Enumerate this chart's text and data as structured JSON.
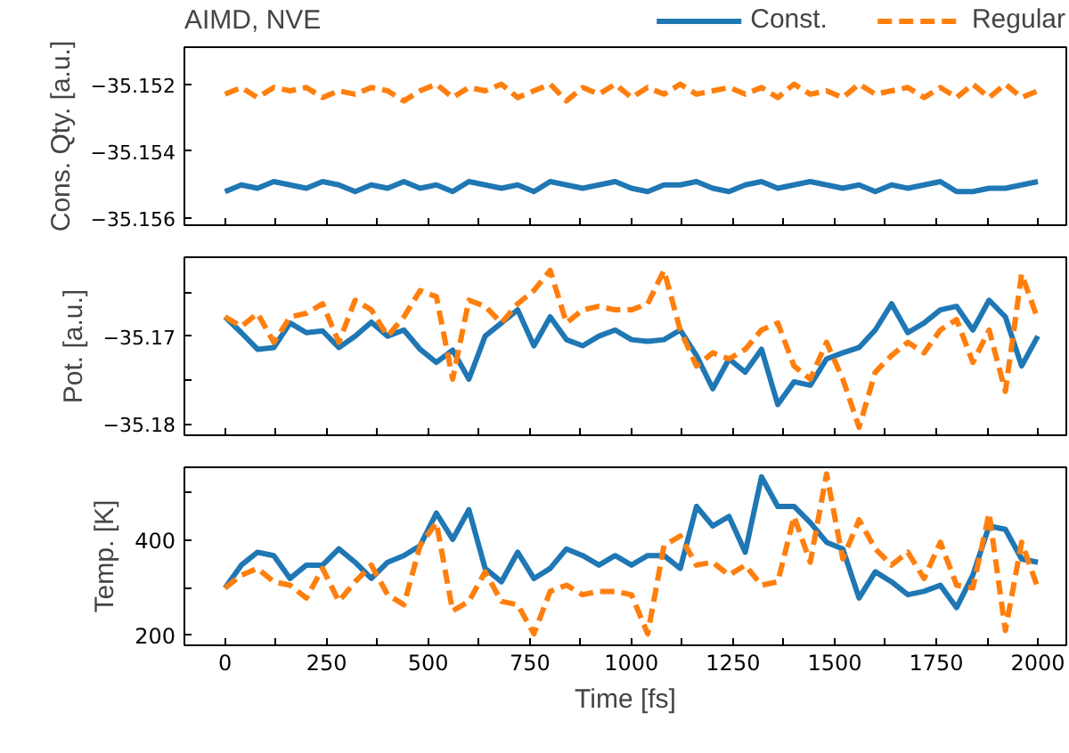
{
  "chart_data": [
    {
      "type": "line",
      "title": "AIMD, NVE",
      "ylabel": "Cons. Qty. [a.u.]",
      "legend": "top right",
      "tick_labels": "y",
      "grid": false,
      "x": [
        0,
        40,
        80,
        120,
        160,
        200,
        240,
        280,
        320,
        360,
        400,
        440,
        480,
        520,
        560,
        600,
        640,
        680,
        720,
        760,
        800,
        840,
        880,
        920,
        960,
        1000,
        1040,
        1080,
        1120,
        1160,
        1200,
        1240,
        1280,
        1320,
        1360,
        1400,
        1440,
        1480,
        1520,
        1560,
        1600,
        1640,
        1680,
        1720,
        1760,
        1800,
        1840,
        1880,
        1920,
        1960,
        2000
      ],
      "xlim": [
        -100,
        2070
      ],
      "xticks": [
        0,
        {
          "value": 125,
          "label": null
        },
        250,
        {
          "value": 375,
          "label": null
        },
        500,
        {
          "value": 625,
          "label": null
        },
        750,
        {
          "value": 875,
          "label": null
        },
        1000,
        {
          "value": 1125,
          "label": null
        },
        1250,
        {
          "value": 1375,
          "label": null
        },
        1500,
        {
          "value": 1625,
          "label": null
        },
        1750,
        {
          "value": 1875,
          "label": null
        },
        2000
      ],
      "ylim": [
        -35.1562,
        -35.1509
      ],
      "yticks": [
        -35.152,
        -35.154,
        -35.156
      ],
      "series": [
        {
          "name": "Const.",
          "color": "#1f77b4",
          "line_style": "solid",
          "values": [
            -35.1552,
            -35.155,
            -35.1551,
            -35.1549,
            -35.155,
            -35.1551,
            -35.1549,
            -35.155,
            -35.1552,
            -35.155,
            -35.1551,
            -35.1549,
            -35.1551,
            -35.155,
            -35.1552,
            -35.1549,
            -35.155,
            -35.1551,
            -35.155,
            -35.1552,
            -35.1549,
            -35.155,
            -35.1551,
            -35.155,
            -35.1549,
            -35.1551,
            -35.1552,
            -35.155,
            -35.155,
            -35.1549,
            -35.1551,
            -35.1552,
            -35.155,
            -35.1549,
            -35.1551,
            -35.155,
            -35.1549,
            -35.155,
            -35.1551,
            -35.155,
            -35.1552,
            -35.155,
            -35.1551,
            -35.155,
            -35.1549,
            -35.1552,
            -35.1552,
            -35.1551,
            -35.1551,
            -35.155,
            -35.1549
          ]
        },
        {
          "name": "Regular",
          "color": "#ff7f0e",
          "line_style": "dashed",
          "values": [
            -35.1523,
            -35.1521,
            -35.1524,
            -35.1521,
            -35.1522,
            -35.1521,
            -35.1524,
            -35.1522,
            -35.1523,
            -35.1521,
            -35.1522,
            -35.1525,
            -35.1522,
            -35.152,
            -35.1524,
            -35.1521,
            -35.1522,
            -35.152,
            -35.1524,
            -35.1522,
            -35.152,
            -35.1525,
            -35.1521,
            -35.1523,
            -35.152,
            -35.1524,
            -35.1521,
            -35.1523,
            -35.152,
            -35.1523,
            -35.1522,
            -35.1521,
            -35.1523,
            -35.1521,
            -35.1524,
            -35.152,
            -35.1523,
            -35.1522,
            -35.1524,
            -35.152,
            -35.1523,
            -35.1522,
            -35.1521,
            -35.1524,
            -35.1521,
            -35.1524,
            -35.152,
            -35.1524,
            -35.152,
            -35.1524,
            -35.1522
          ]
        }
      ]
    },
    {
      "type": "line",
      "ylabel": "Pot. [a.u.]",
      "tick_labels": "y",
      "grid": false,
      "x": [
        0,
        40,
        80,
        120,
        160,
        200,
        240,
        280,
        320,
        360,
        400,
        440,
        480,
        520,
        560,
        600,
        640,
        680,
        720,
        760,
        800,
        840,
        880,
        920,
        960,
        1000,
        1040,
        1080,
        1120,
        1160,
        1200,
        1240,
        1280,
        1320,
        1360,
        1400,
        1440,
        1480,
        1520,
        1560,
        1600,
        1640,
        1680,
        1720,
        1760,
        1800,
        1840,
        1880,
        1920,
        1960,
        2000
      ],
      "xlim": [
        -100,
        2070
      ],
      "xticks": [
        0,
        {
          "value": 125,
          "label": null
        },
        250,
        {
          "value": 375,
          "label": null
        },
        500,
        {
          "value": 625,
          "label": null
        },
        750,
        {
          "value": 875,
          "label": null
        },
        1000,
        {
          "value": 1125,
          "label": null
        },
        1250,
        {
          "value": 1375,
          "label": null
        },
        1500,
        {
          "value": 1625,
          "label": null
        },
        1750,
        {
          "value": 1875,
          "label": null
        },
        2000
      ],
      "ylim": [
        -35.1813,
        -35.161
      ],
      "yticks": [
        {
          "value": -35.165,
          "label": null
        },
        -35.17,
        {
          "value": -35.175,
          "label": null
        },
        -35.18
      ],
      "series": [
        {
          "color": "#1f77b4",
          "line_style": "solid",
          "values": [
            -35.1678,
            -35.1696,
            -35.1715,
            -35.1713,
            -35.1685,
            -35.1696,
            -35.1694,
            -35.1713,
            -35.17,
            -35.1684,
            -35.17,
            -35.1693,
            -35.1715,
            -35.173,
            -35.1716,
            -35.1749,
            -35.17,
            -35.1685,
            -35.167,
            -35.1711,
            -35.1678,
            -35.1704,
            -35.1711,
            -35.17,
            -35.1693,
            -35.1704,
            -35.1706,
            -35.1704,
            -35.1693,
            -35.1722,
            -35.176,
            -35.1726,
            -35.1741,
            -35.1715,
            -35.1778,
            -35.1752,
            -35.1756,
            -35.1726,
            -35.1719,
            -35.1713,
            -35.1693,
            -35.1663,
            -35.1696,
            -35.1685,
            -35.167,
            -35.1666,
            -35.1693,
            -35.1659,
            -35.1678,
            -35.1734,
            -35.17
          ]
        },
        {
          "color": "#ff7f0e",
          "line_style": "dashed",
          "values": [
            -35.1678,
            -35.1689,
            -35.1674,
            -35.1707,
            -35.1678,
            -35.1674,
            -35.1663,
            -35.1707,
            -35.1659,
            -35.167,
            -35.17,
            -35.1678,
            -35.1648,
            -35.1655,
            -35.1749,
            -35.1659,
            -35.1666,
            -35.1685,
            -35.1663,
            -35.1648,
            -35.1625,
            -35.1685,
            -35.167,
            -35.1666,
            -35.167,
            -35.167,
            -35.1663,
            -35.1625,
            -35.1693,
            -35.1734,
            -35.1719,
            -35.1726,
            -35.1715,
            -35.1693,
            -35.1685,
            -35.1734,
            -35.1749,
            -35.1707,
            -35.1749,
            -35.1804,
            -35.1741,
            -35.1722,
            -35.1707,
            -35.1719,
            -35.1693,
            -35.1681,
            -35.173,
            -35.1693,
            -35.1763,
            -35.1629,
            -35.1681
          ]
        }
      ]
    },
    {
      "type": "line",
      "ylabel": "Temp. [K]",
      "xlabel": "Time [fs]",
      "grid": false,
      "x": [
        0,
        40,
        80,
        120,
        160,
        200,
        240,
        280,
        320,
        360,
        400,
        440,
        480,
        520,
        560,
        600,
        640,
        680,
        720,
        760,
        800,
        840,
        880,
        920,
        960,
        1000,
        1040,
        1080,
        1120,
        1160,
        1200,
        1240,
        1280,
        1320,
        1360,
        1400,
        1440,
        1480,
        1520,
        1560,
        1600,
        1640,
        1680,
        1720,
        1760,
        1800,
        1840,
        1880,
        1920,
        1960,
        2000
      ],
      "xlim": [
        -100,
        2070
      ],
      "xticks": [
        0,
        {
          "value": 125,
          "label": null
        },
        250,
        {
          "value": 375,
          "label": null
        },
        500,
        {
          "value": 625,
          "label": null
        },
        750,
        {
          "value": 875,
          "label": null
        },
        1000,
        {
          "value": 1125,
          "label": null
        },
        1250,
        {
          "value": 1375,
          "label": null
        },
        1500,
        {
          "value": 1625,
          "label": null
        },
        1750,
        {
          "value": 1875,
          "label": null
        },
        2000
      ],
      "ylim": [
        179,
        552
      ],
      "yticks": [
        200,
        {
          "value": 300,
          "label": null
        },
        400,
        {
          "value": 500,
          "label": null
        }
      ],
      "series": [
        {
          "color": "#1f77b4",
          "line_style": "solid",
          "values": [
            299,
            347,
            374,
            367,
            319,
            347,
            347,
            381,
            353,
            319,
            353,
            367,
            388,
            456,
            401,
            463,
            340,
            312,
            374,
            319,
            340,
            381,
            367,
            347,
            367,
            347,
            367,
            367,
            340,
            470,
            429,
            449,
            374,
            532,
            470,
            470,
            436,
            395,
            381,
            278,
            333,
            312,
            285,
            292,
            305,
            258,
            326,
            429,
            422,
            360,
            353
          ]
        },
        {
          "color": "#ff7f0e",
          "line_style": "dashed",
          "values": [
            299,
            326,
            340,
            312,
            305,
            278,
            340,
            271,
            312,
            347,
            285,
            264,
            388,
            436,
            251,
            271,
            333,
            271,
            264,
            203,
            292,
            305,
            285,
            292,
            292,
            285,
            203,
            388,
            408,
            347,
            353,
            326,
            347,
            305,
            312,
            449,
            353,
            538,
            360,
            442,
            381,
            347,
            374,
            319,
            395,
            305,
            299,
            456,
            210,
            395,
            299
          ]
        }
      ]
    }
  ]
}
